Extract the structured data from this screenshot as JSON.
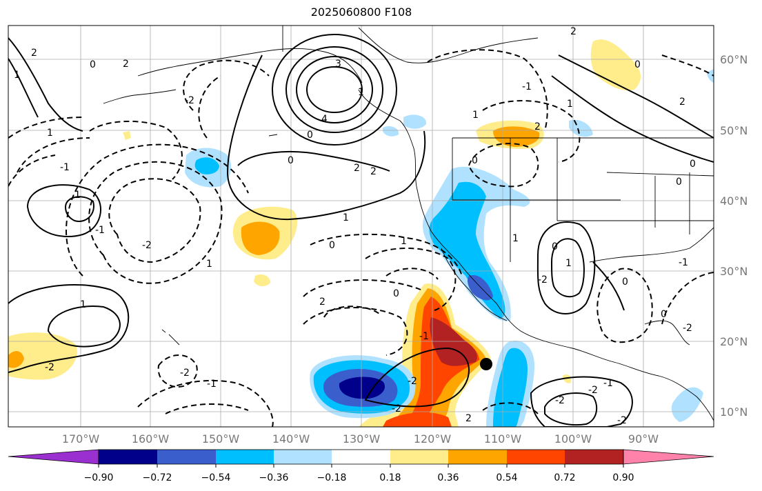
{
  "title": "2025060800 F108",
  "lat_labels": [
    "60°N",
    "50°N",
    "40°N",
    "30°N",
    "20°N",
    "10°N"
  ],
  "lon_labels": [
    "170°W",
    "160°W",
    "150°W",
    "140°W",
    "130°W",
    "120°W",
    "110°W",
    "100°W",
    "90°W"
  ],
  "colorbar": {
    "labels": [
      "−0.90",
      "−0.72",
      "−0.54",
      "−0.36",
      "−0.18",
      "0.18",
      "0.36",
      "0.54",
      "0.72",
      "0.90"
    ],
    "colors": [
      "#9b30d0",
      "#00008b",
      "#3a5fcd",
      "#00bfff",
      "#b0e2ff",
      "#ffffff",
      "#ffec8b",
      "#ffa500",
      "#ff4500",
      "#b22222",
      "#ff82ab"
    ]
  },
  "contour_labels": [
    "2",
    "0",
    "2",
    "-1",
    "1",
    "1",
    "2",
    "0",
    "3",
    "1",
    "4",
    "0",
    "2",
    "2",
    "1",
    "0",
    "-2",
    "1",
    "-1",
    "1",
    "-1",
    "-2",
    "1",
    "0",
    "1",
    "-2",
    "-2",
    "-1",
    "2",
    "1",
    "0",
    "-1",
    "-2",
    "-2",
    "2",
    "1",
    "0",
    "1",
    "-2",
    "0",
    "-1",
    "0",
    "-2",
    "-1",
    "-2",
    "-2",
    "-2",
    "0",
    "0",
    "1",
    "2",
    "0",
    "2"
  ],
  "marker": {
    "name": "black dot"
  }
}
